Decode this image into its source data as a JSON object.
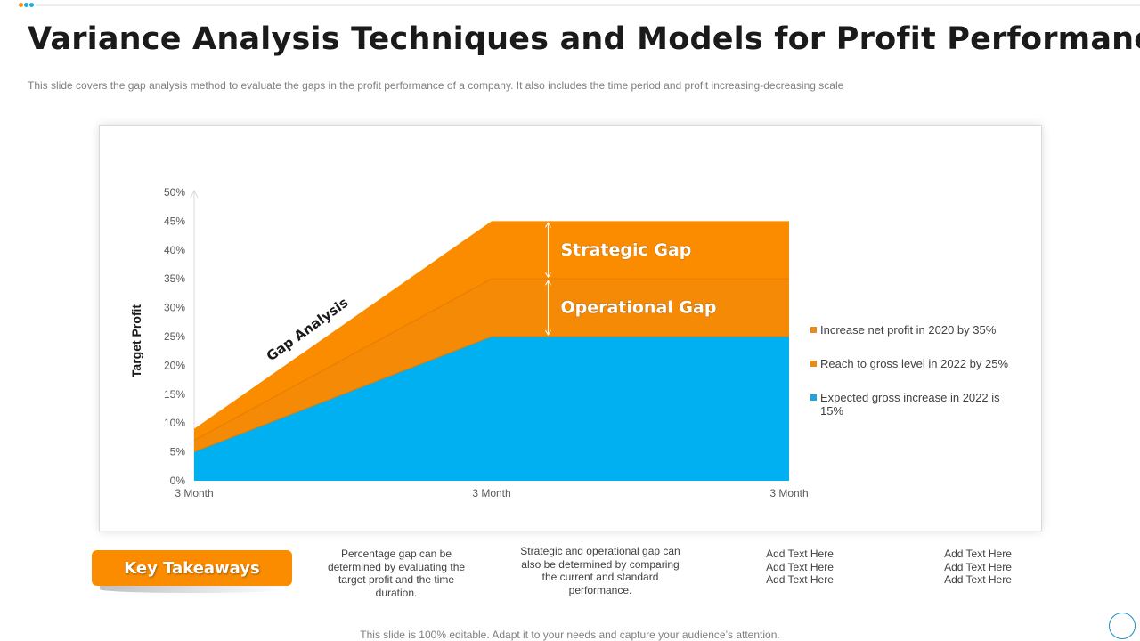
{
  "header": {
    "title": "Variance Analysis Techniques and Models for Profit Performance",
    "subtitle": "This slide covers the gap analysis method to evaluate the gaps in the profit performance of a company. It also includes the time period and profit increasing-decreasing scale"
  },
  "colors": {
    "orange": "#fb8c00",
    "blue": "#00b0f0",
    "dot_orange": "#f7941d",
    "dot_blue": "#1fa9e1"
  },
  "chart_data": {
    "type": "area",
    "ylabel": "Target Profit",
    "y_ticks": [
      "0%",
      "5%",
      "10%",
      "15%",
      "20%",
      "25%",
      "30%",
      "35%",
      "40%",
      "45%",
      "50%"
    ],
    "ylim": [
      0,
      50
    ],
    "categories": [
      "3 Month",
      "3 Month",
      "3 Month"
    ],
    "x_positions": [
      0,
      0.5,
      1
    ],
    "series": [
      {
        "name": "Expected gross increase in 2022 is 15%",
        "color": "#00b0f0",
        "points": [
          [
            0,
            5
          ],
          [
            0.5,
            25
          ],
          [
            1,
            25
          ]
        ]
      },
      {
        "name": "Reach to gross level in 2022 by 25%",
        "color": "#f58a07",
        "points": [
          [
            0,
            7
          ],
          [
            0.5,
            35
          ],
          [
            1,
            35
          ]
        ]
      },
      {
        "name": "Increase net profit in 2020 by 35%",
        "color": "#fb8c00",
        "points": [
          [
            0,
            9
          ],
          [
            0.5,
            45
          ],
          [
            1,
            45
          ]
        ]
      }
    ],
    "legend": [
      {
        "label": "Increase net profit in 2020 by 35%",
        "color": "#e98a1c"
      },
      {
        "label": "Reach to gross level in 2022 by 25%",
        "color": "#e98a1c"
      },
      {
        "label": "Expected gross increase in 2022 is 15%",
        "color": "#1ea5e0"
      }
    ],
    "annotations": {
      "strategic_gap": "Strategic Gap",
      "operational_gap": "Operational Gap",
      "gap_analysis": "Gap Analysis"
    },
    "legend_position": "right",
    "grid": false
  },
  "takeaways": {
    "label": "Key Takeaways",
    "items": [
      [
        "Percentage gap can be",
        "determined by evaluating the",
        "target profit and the time",
        "duration."
      ],
      [
        "Strategic and operational gap can",
        "also be determined by comparing",
        "the current and standard",
        "performance."
      ],
      [
        "Add Text Here",
        "Add Text Here",
        "Add Text Here"
      ],
      [
        "Add Text Here",
        "Add Text Here",
        "Add Text Here"
      ]
    ]
  },
  "footer": "This slide is 100% editable. Adapt it to your needs and capture your audience’s attention."
}
